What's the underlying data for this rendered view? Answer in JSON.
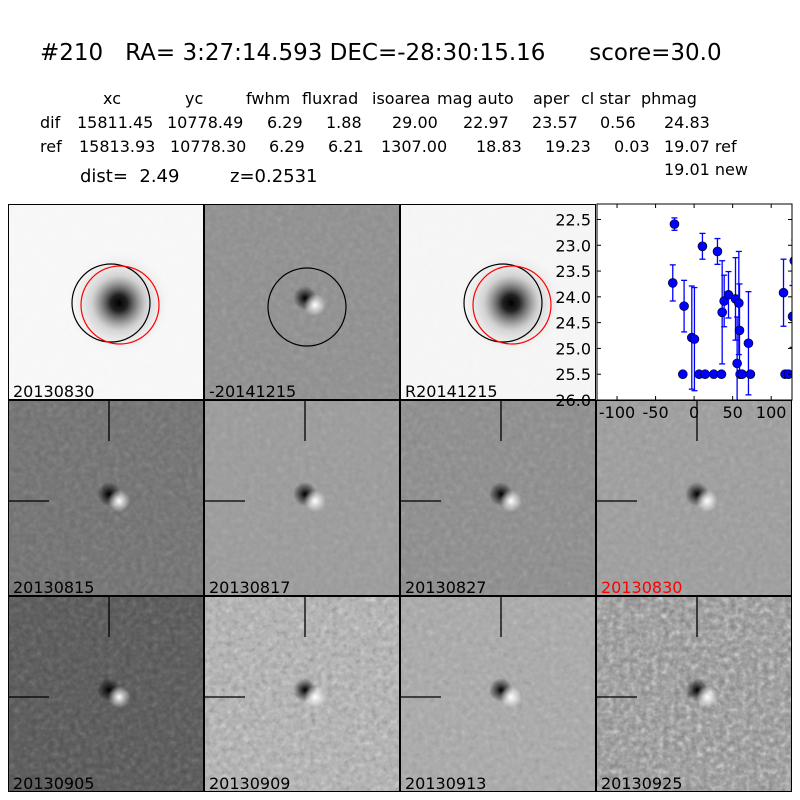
{
  "header": {
    "id": "#210",
    "ra": "RA= 3:27:14.593",
    "dec": "DEC=-28:30:15.16",
    "score": "score=30.0"
  },
  "table": {
    "columns": [
      "xc",
      "yc",
      "fwhm",
      "fluxrad",
      "isoarea",
      "mag auto",
      "aper",
      "cl star",
      "phmag"
    ],
    "rows": [
      {
        "label": "dif",
        "values": [
          "15811.45",
          "10778.49",
          "6.29",
          "1.88",
          "29.00",
          "22.97",
          "23.57",
          "0.56",
          "24.83"
        ]
      },
      {
        "label": "ref",
        "values": [
          "15813.93",
          "10778.30",
          "6.29",
          "6.21",
          "1307.00",
          "18.83",
          "19.23",
          "0.03",
          "19.07 ref"
        ]
      }
    ],
    "extra_phmag": "19.01 new",
    "dist": "dist=  2.49",
    "z": "z=0.2531"
  },
  "stamps": [
    {
      "label": "20130830",
      "label_color": "#000000"
    },
    {
      "label": "-20141215",
      "label_color": "#000000"
    },
    {
      "label": "R20141215",
      "label_color": "#000000"
    },
    {
      "label": "20130815",
      "label_color": "#000000"
    },
    {
      "label": "20130817",
      "label_color": "#000000"
    },
    {
      "label": "20130827",
      "label_color": "#000000"
    },
    {
      "label": "20130830",
      "label_color": "#ff0000"
    },
    {
      "label": "20130905",
      "label_color": "#000000"
    },
    {
      "label": "20130909",
      "label_color": "#000000"
    },
    {
      "label": "20130913",
      "label_color": "#000000"
    },
    {
      "label": "20130925",
      "label_color": "#000000"
    }
  ],
  "chart_data": {
    "type": "scatter",
    "xlim": [
      -126,
      127
    ],
    "ylim": [
      26.0,
      22.2
    ],
    "y_inverted": true,
    "xticks": [
      "-100",
      "-50",
      "0",
      "50",
      "100"
    ],
    "xtick_values": [
      -100,
      -50,
      0,
      50,
      100
    ],
    "yticks": [
      "22.5",
      "23.0",
      "23.5",
      "24.0",
      "24.5",
      "25.0",
      "25.5",
      "26.0"
    ],
    "ytick_values": [
      22.5,
      23.0,
      23.5,
      24.0,
      24.5,
      25.0,
      25.5,
      26.0
    ],
    "marker_color": "#0000ff",
    "points": [
      {
        "x": -27.7,
        "y": 23.73,
        "err": 0.35
      },
      {
        "x": -25.5,
        "y": 22.59,
        "err": 0.12
      },
      {
        "x": -14.7,
        "y": 25.5,
        "err": 0.05
      },
      {
        "x": -13,
        "y": 24.18,
        "err": 0.5
      },
      {
        "x": -3,
        "y": 24.79,
        "err": 1.0
      },
      {
        "x": 0.4,
        "y": 24.82,
        "err": 1.0
      },
      {
        "x": 6.5,
        "y": 25.5,
        "err": 0.05
      },
      {
        "x": 10.8,
        "y": 23.02,
        "err": 0.25
      },
      {
        "x": 14.3,
        "y": 25.5,
        "err": 0.05
      },
      {
        "x": 25.5,
        "y": 25.5,
        "err": 0.05
      },
      {
        "x": 30.3,
        "y": 23.12,
        "err": 0.25
      },
      {
        "x": 35.5,
        "y": 25.5,
        "err": 0.05
      },
      {
        "x": 36.4,
        "y": 24.3,
        "err": 1.0
      },
      {
        "x": 39,
        "y": 24.08,
        "err": 0.5
      },
      {
        "x": 44.6,
        "y": 23.96,
        "err": 0.45
      },
      {
        "x": 53.7,
        "y": 24.04,
        "err": 0.8
      },
      {
        "x": 55.8,
        "y": 25.29,
        "err": 0.9
      },
      {
        "x": 58,
        "y": 24.12,
        "err": 1.0
      },
      {
        "x": 58.9,
        "y": 24.65,
        "err": 0.9
      },
      {
        "x": 59.7,
        "y": 25.5,
        "err": 0.05
      },
      {
        "x": 62.3,
        "y": 25.5,
        "err": 0.05
      },
      {
        "x": 70.5,
        "y": 24.9,
        "err": 1.0
      },
      {
        "x": 73,
        "y": 25.5,
        "err": 0.05
      },
      {
        "x": 116,
        "y": 23.92,
        "err": 0.65
      },
      {
        "x": 118,
        "y": 25.5,
        "err": 0.05
      },
      {
        "x": 122.5,
        "y": 25.5,
        "err": 0.05
      },
      {
        "x": 127.7,
        "y": 24.38,
        "err": 0.6
      },
      {
        "x": 130,
        "y": 23.3,
        "err": 0.4
      }
    ]
  }
}
